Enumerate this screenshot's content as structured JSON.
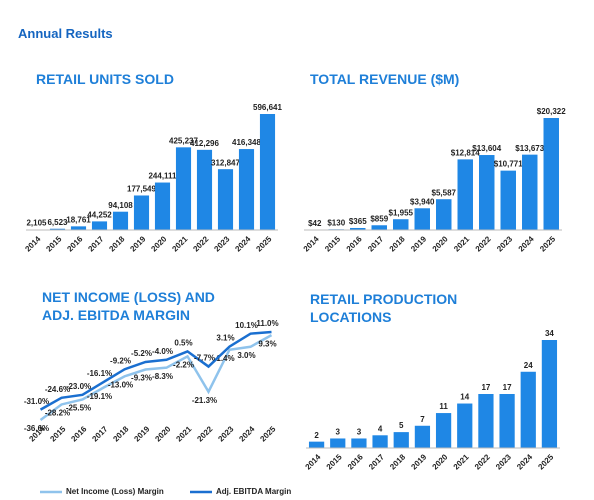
{
  "title": "Annual Results",
  "chart_data": [
    {
      "type": "bar",
      "title": "RETAIL UNITS SOLD",
      "color": "#1f87e5",
      "categories": [
        "2014",
        "2015",
        "2016",
        "2017",
        "2018",
        "2019",
        "2020",
        "2021",
        "2022",
        "2023",
        "2024",
        "2025"
      ],
      "values": [
        2105,
        6523,
        18761,
        44252,
        94108,
        177549,
        244111,
        425237,
        412296,
        312847,
        416348,
        596641
      ],
      "value_labels": [
        "2,105",
        "6,523",
        "18,761",
        "44,252",
        "94,108",
        "177,549",
        "244,111",
        "425,237",
        "412,296",
        "312,847",
        "416,348",
        "596,641"
      ]
    },
    {
      "type": "bar",
      "title": "TOTAL REVENUE ($M)",
      "color": "#1f87e5",
      "categories": [
        "2014",
        "2015",
        "2016",
        "2017",
        "2018",
        "2019",
        "2020",
        "2021",
        "2022",
        "2023",
        "2024",
        "2025"
      ],
      "values": [
        42,
        130,
        365,
        859,
        1955,
        3940,
        5587,
        12814,
        13604,
        10771,
        13673,
        20322
      ],
      "value_labels": [
        "$42",
        "$130",
        "$365",
        "$859",
        "$1,955",
        "$3,940",
        "$5,587",
        "$12,814",
        "$13,604",
        "$10,771",
        "$13,673",
        "$20,322"
      ]
    },
    {
      "type": "line",
      "title": "NET INCOME (LOSS) AND ADJ. EBITDA MARGIN",
      "categories": [
        "2014",
        "2015",
        "2016",
        "2017",
        "2018",
        "2019",
        "2020",
        "2021",
        "2022",
        "2023",
        "2024",
        "2025"
      ],
      "series": [
        {
          "name": "Net Income (Loss) Margin",
          "color": "#8fc3ec",
          "values": [
            -36.6,
            -28.2,
            -25.5,
            -19.1,
            -13.0,
            -9.3,
            -8.3,
            -2.2,
            -21.3,
            1.4,
            3.0,
            9.3
          ],
          "value_labels": [
            "-36.6%",
            "-28.2%",
            "-25.5%",
            "-19.1%",
            "-13.0%",
            "-9.3%",
            "-8.3%",
            "-2.2%",
            "-21.3%",
            "1.4%",
            "3.0%",
            "9.3%"
          ]
        },
        {
          "name": "Adj. EBITDA Margin",
          "color": "#1a6fd0",
          "values": [
            -31.0,
            -24.6,
            -23.0,
            -16.1,
            -9.2,
            -5.2,
            -4.0,
            0.5,
            -7.7,
            3.1,
            10.1,
            11.0
          ],
          "value_labels": [
            "-31.0%",
            "-24.6%",
            "-23.0%",
            "-16.1%",
            "-9.2%",
            "-5.2%",
            "-4.0%",
            "0.5%",
            "-7.7%",
            "3.1%",
            "10.1%",
            "11.0%"
          ]
        }
      ]
    },
    {
      "type": "bar",
      "title": "RETAIL PRODUCTION LOCATIONS",
      "color": "#1f87e5",
      "categories": [
        "2014",
        "2015",
        "2016",
        "2017",
        "2018",
        "2019",
        "2020",
        "2021",
        "2022",
        "2023",
        "2024",
        "2025"
      ],
      "values": [
        2,
        3,
        3,
        4,
        5,
        7,
        11,
        14,
        17,
        17,
        24,
        34
      ]
    }
  ]
}
